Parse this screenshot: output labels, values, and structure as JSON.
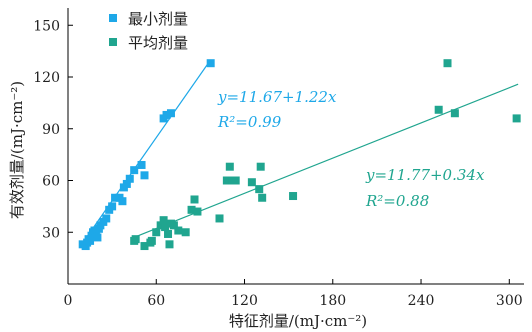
{
  "chart_data": {
    "type": "scatter",
    "xlabel": "特征剂量/(mJ·cm⁻²)",
    "ylabel": "有效剂量/(mJ·cm⁻²)",
    "xlim": [
      0,
      310
    ],
    "ylim": [
      0,
      160
    ],
    "x_ticks": [
      "0",
      "60",
      "120",
      "180",
      "240",
      "300"
    ],
    "y_ticks": [
      "30",
      "60",
      "90",
      "120",
      "150"
    ],
    "grid": false,
    "legend_position": "top-left",
    "series": [
      {
        "name": "最小剂量",
        "color": "#1ea8e8",
        "marker": "square",
        "points": [
          [
            10,
            23
          ],
          [
            12,
            22
          ],
          [
            13,
            24
          ],
          [
            14,
            26
          ],
          [
            15,
            25
          ],
          [
            16,
            28
          ],
          [
            17,
            30
          ],
          [
            18,
            31
          ],
          [
            19,
            29
          ],
          [
            20,
            27
          ],
          [
            21,
            32
          ],
          [
            22,
            34
          ],
          [
            24,
            36
          ],
          [
            26,
            38
          ],
          [
            28,
            43
          ],
          [
            30,
            45
          ],
          [
            32,
            50
          ],
          [
            35,
            50
          ],
          [
            37,
            48
          ],
          [
            38,
            56
          ],
          [
            40,
            58
          ],
          [
            42,
            61
          ],
          [
            45,
            66
          ],
          [
            50,
            69
          ],
          [
            52,
            63
          ],
          [
            65,
            96
          ],
          [
            67,
            98
          ],
          [
            70,
            99
          ],
          [
            97,
            128
          ]
        ],
        "fit": {
          "equation": "y=11.67+1.22x",
          "r2": "R²=0.99",
          "x_range": [
            10,
            97
          ]
        }
      },
      {
        "name": "平均剂量",
        "color": "#20a58f",
        "marker": "square",
        "points": [
          [
            45,
            25
          ],
          [
            46,
            26
          ],
          [
            52,
            22
          ],
          [
            56,
            24
          ],
          [
            57,
            25
          ],
          [
            60,
            30
          ],
          [
            63,
            34
          ],
          [
            65,
            37
          ],
          [
            66,
            33
          ],
          [
            68,
            29
          ],
          [
            69,
            23
          ],
          [
            70,
            35
          ],
          [
            72,
            34
          ],
          [
            75,
            31
          ],
          [
            80,
            30
          ],
          [
            84,
            43
          ],
          [
            86,
            49
          ],
          [
            88,
            42
          ],
          [
            103,
            38
          ],
          [
            108,
            60
          ],
          [
            110,
            68
          ],
          [
            112,
            60
          ],
          [
            114,
            60
          ],
          [
            125,
            59
          ],
          [
            130,
            55
          ],
          [
            131,
            68
          ],
          [
            132,
            50
          ],
          [
            153,
            51
          ],
          [
            252,
            101
          ],
          [
            258,
            128
          ],
          [
            263,
            99
          ],
          [
            305,
            96
          ]
        ],
        "fit": {
          "equation": "y=11.77+0.34x",
          "r2": "R²=0.88",
          "x_range": [
            45,
            306
          ]
        }
      }
    ]
  }
}
